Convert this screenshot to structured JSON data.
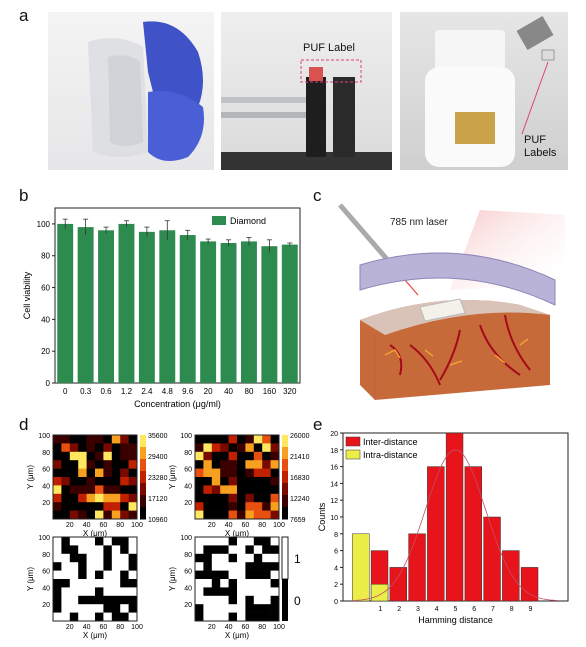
{
  "panel_letters": {
    "a": "a",
    "b": "b",
    "c": "c",
    "d": "d",
    "e": "e"
  },
  "panel_a": {
    "photo2_label": "PUF Label",
    "photo3_label_line1": "PUF",
    "photo3_label_line2": "Labels"
  },
  "panel_c": {
    "laser_label": "785 nm laser"
  },
  "chart_data": [
    {
      "id": "b",
      "type": "bar",
      "categories": [
        "0",
        "0.3",
        "0.6",
        "1.2",
        "2.4",
        "4.8",
        "9.6",
        "20",
        "40",
        "80",
        "160",
        "320"
      ],
      "series": [
        {
          "name": "Diamond",
          "values": [
            100,
            98,
            96,
            100,
            95,
            96,
            93,
            89,
            88,
            89,
            86,
            87
          ],
          "errors": [
            3,
            5,
            2,
            2,
            3,
            6,
            3,
            1.5,
            2,
            2.5,
            4,
            1
          ]
        }
      ],
      "xlabel": "Concentration (μg/ml)",
      "ylabel": "Cell viability",
      "ylim": [
        0,
        110
      ],
      "yticks": [
        0,
        20,
        40,
        60,
        80,
        100
      ],
      "legend": "top-right",
      "color": "#2e8b4f"
    },
    {
      "id": "d1",
      "type": "heatmap",
      "xlabel": "X (μm)",
      "ylabel": "Y (μm)",
      "xticks": [
        "20",
        "40",
        "60",
        "80",
        "100"
      ],
      "yticks": [
        "20",
        "40",
        "60",
        "80",
        "100"
      ],
      "colorbar_ticks": [
        "35600",
        "29400",
        "23280",
        "17120",
        "10960"
      ]
    },
    {
      "id": "d2",
      "type": "heatmap",
      "xlabel": "X (μm)",
      "ylabel": "Y (μm)",
      "xticks": [
        "20",
        "40",
        "60",
        "80",
        "100"
      ],
      "yticks": [
        "20",
        "40",
        "60",
        "80",
        "100"
      ],
      "colorbar_ticks": [
        "26000",
        "21410",
        "16830",
        "12240",
        "7659"
      ]
    },
    {
      "id": "d3",
      "type": "heatmap",
      "xlabel": "X (μm)",
      "ylabel": "Y (μm)",
      "xticks": [
        "20",
        "40",
        "60",
        "80",
        "100"
      ],
      "yticks": [
        "20",
        "40",
        "60",
        "80",
        "100"
      ]
    },
    {
      "id": "d4",
      "type": "heatmap",
      "xlabel": "X (μm)",
      "ylabel": "Y (μm)",
      "xticks": [
        "20",
        "40",
        "60",
        "80",
        "100"
      ],
      "yticks": [
        "20",
        "40",
        "60",
        "80",
        "100"
      ],
      "colorbar_ticks": [
        "1",
        "0"
      ]
    },
    {
      "id": "e",
      "type": "bar",
      "categories": [
        "1",
        "2",
        "3",
        "4",
        "5",
        "6",
        "7",
        "8",
        "9"
      ],
      "series": [
        {
          "name": "Inter-distance",
          "values": [
            6,
            4,
            8,
            16,
            20,
            16,
            10,
            6,
            4
          ],
          "color": "#e8141c"
        },
        {
          "name": "Intra-distance",
          "values": [
            8,
            2
          ],
          "x": [
            0,
            1
          ],
          "color": "#eded4a"
        }
      ],
      "xlabel": "Hamming distance",
      "ylabel": "Counts",
      "ylim": [
        0,
        20
      ],
      "yticks": [
        0,
        2,
        4,
        6,
        8,
        10,
        12,
        14,
        16,
        18,
        20
      ],
      "legend": "top-left"
    }
  ]
}
